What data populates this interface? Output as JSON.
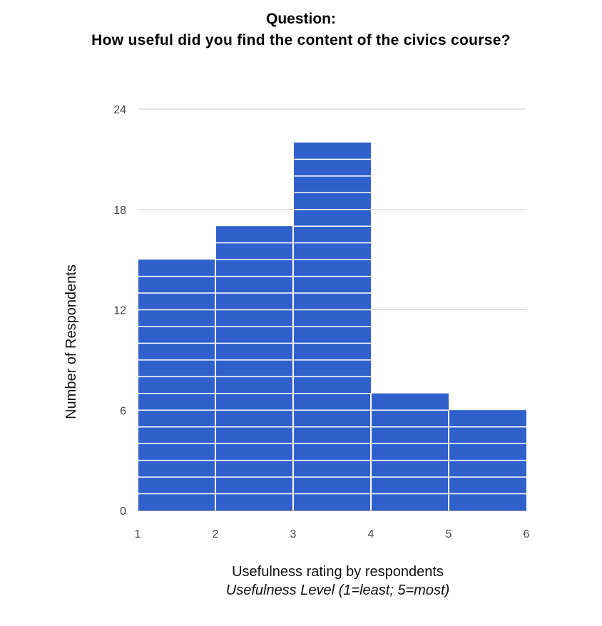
{
  "title_line1": "Question:",
  "title_line2": "How useful did you find the content of the civics course?",
  "chart_data": {
    "type": "bar",
    "subtype": "histogram",
    "bins": [
      {
        "start": 1,
        "end": 2,
        "value": 15
      },
      {
        "start": 2,
        "end": 3,
        "value": 17
      },
      {
        "start": 3,
        "end": 4,
        "value": 22
      },
      {
        "start": 4,
        "end": 5,
        "value": 7
      },
      {
        "start": 5,
        "end": 6,
        "value": 6
      }
    ],
    "unit_step": 1,
    "xlim": [
      1,
      6
    ],
    "ylim": [
      0,
      24
    ],
    "x_ticks": [
      "1",
      "2",
      "3",
      "4",
      "5",
      "6"
    ],
    "y_ticks": [
      "0",
      "6",
      "12",
      "18",
      "24"
    ],
    "xlabel": "Usefulness rating by respondents",
    "xlabel_sub": "Usefulness Level (1=least; 5=most)",
    "ylabel": "Number of Respondents",
    "grid": true,
    "legend": "none",
    "bar_color": "#3060CC",
    "grid_color": "#CCCCCC"
  }
}
